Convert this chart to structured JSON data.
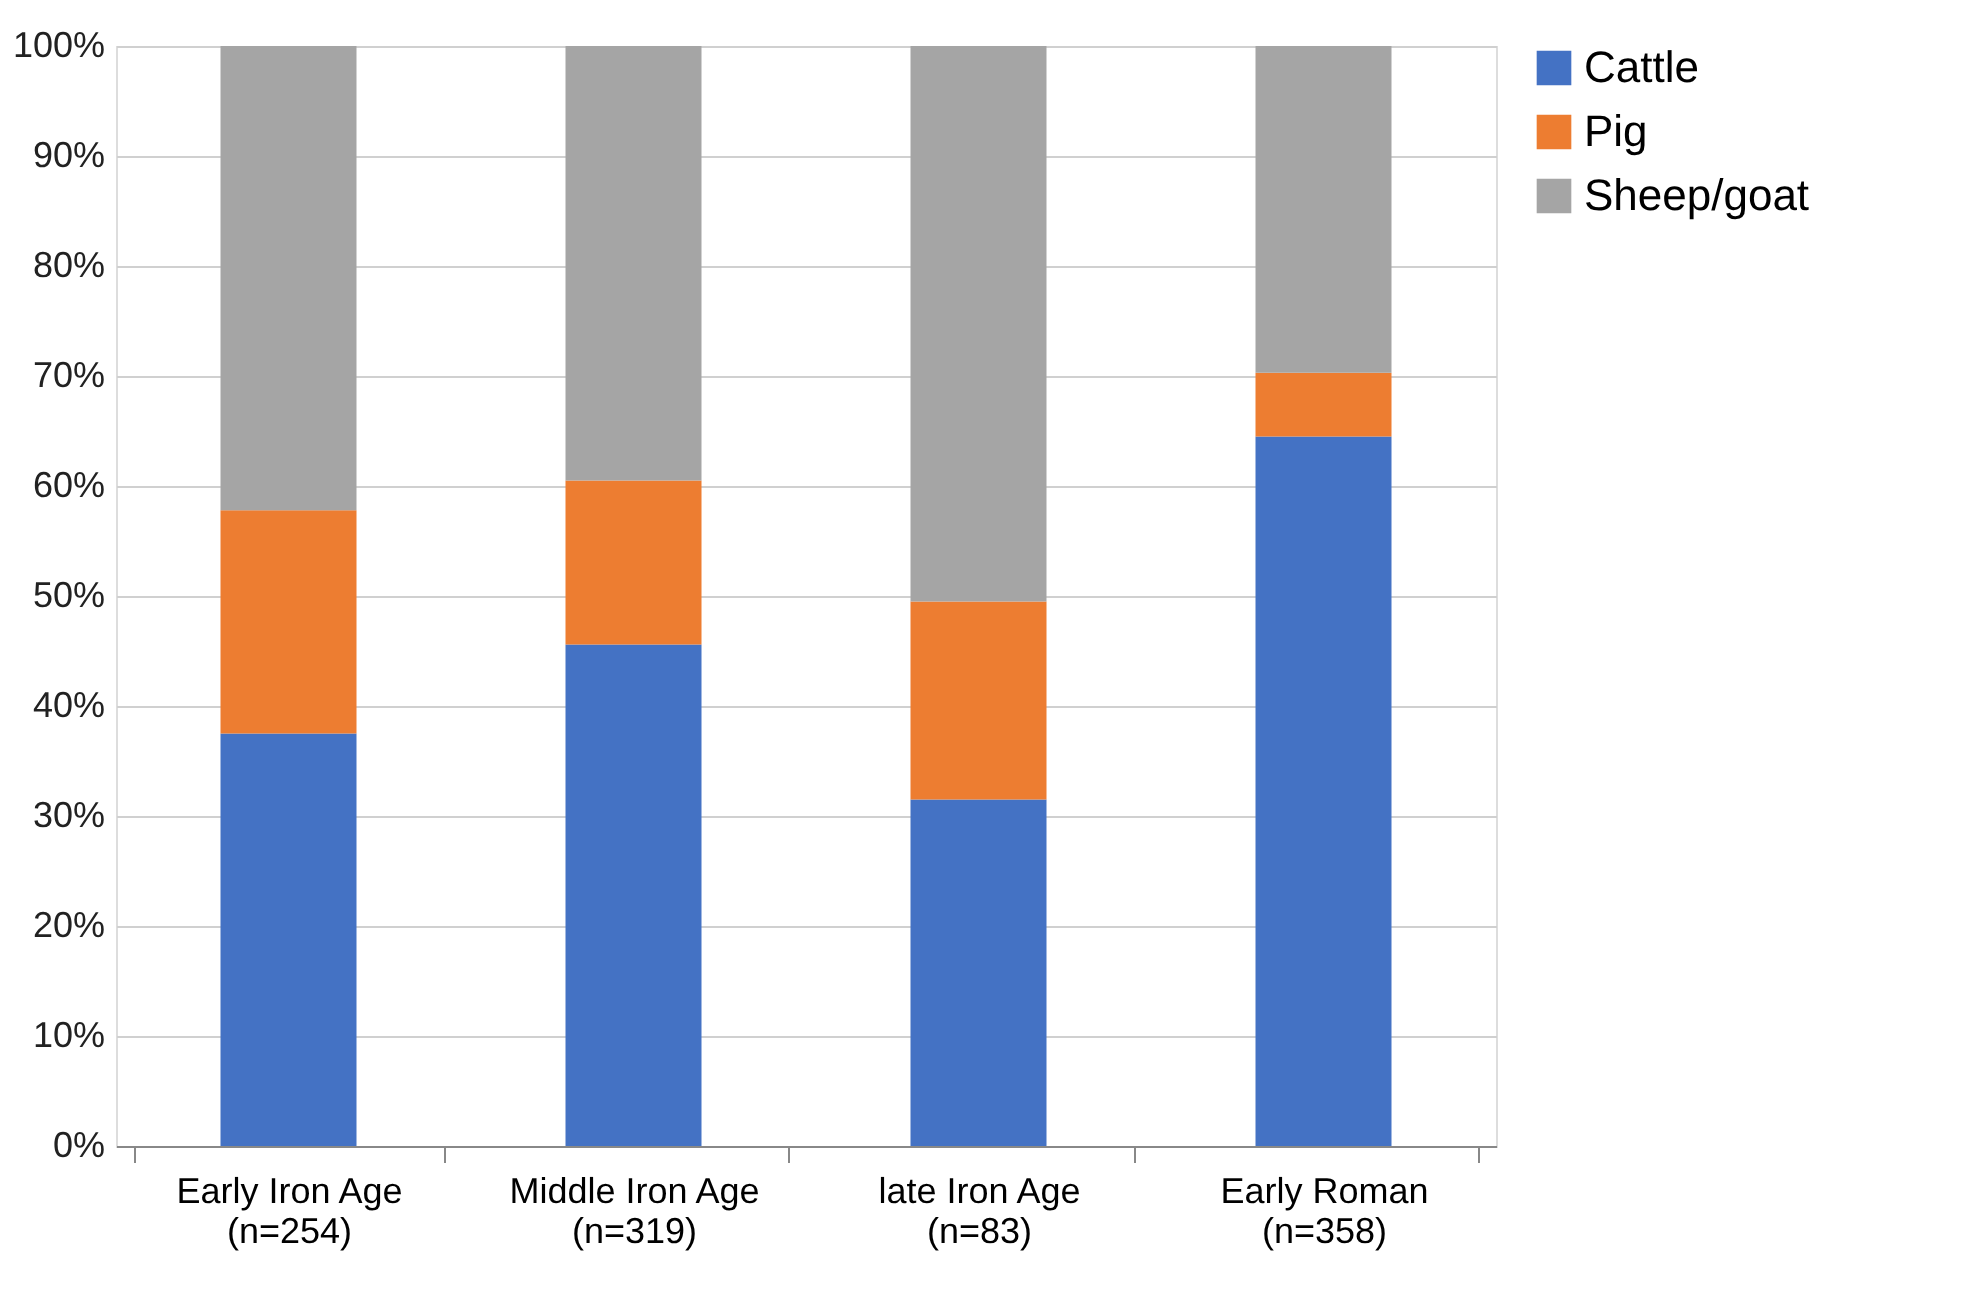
{
  "chart_data": {
    "type": "bar",
    "stacked": true,
    "categories": [
      "Early Iron Age\n(n=254)",
      "Middle Iron Age\n(n=319)",
      "late Iron Age\n(n=83)",
      "Early Roman\n(n=358)"
    ],
    "series": [
      {
        "name": "Cattle",
        "color": "#4472c4",
        "values": [
          37.5,
          45.6,
          31.5,
          64.5
        ]
      },
      {
        "name": "Pig",
        "color": "#ed7d31",
        "values": [
          20.3,
          14.9,
          18.0,
          5.8
        ]
      },
      {
        "name": "Sheep/goat",
        "color": "#a5a5a5",
        "values": [
          42.2,
          39.5,
          50.5,
          29.7
        ]
      }
    ],
    "ylim": [
      0,
      100
    ],
    "yticks": [
      {
        "value": 0,
        "label": "0%"
      },
      {
        "value": 10,
        "label": "10%"
      },
      {
        "value": 20,
        "label": "20%"
      },
      {
        "value": 30,
        "label": "30%"
      },
      {
        "value": 40,
        "label": "40%"
      },
      {
        "value": 50,
        "label": "50%"
      },
      {
        "value": 60,
        "label": "60%"
      },
      {
        "value": 70,
        "label": "70%"
      },
      {
        "value": 80,
        "label": "80%"
      },
      {
        "value": 90,
        "label": "90%"
      },
      {
        "value": 100,
        "label": "100%"
      }
    ],
    "grid": "y",
    "legend": "top right"
  }
}
